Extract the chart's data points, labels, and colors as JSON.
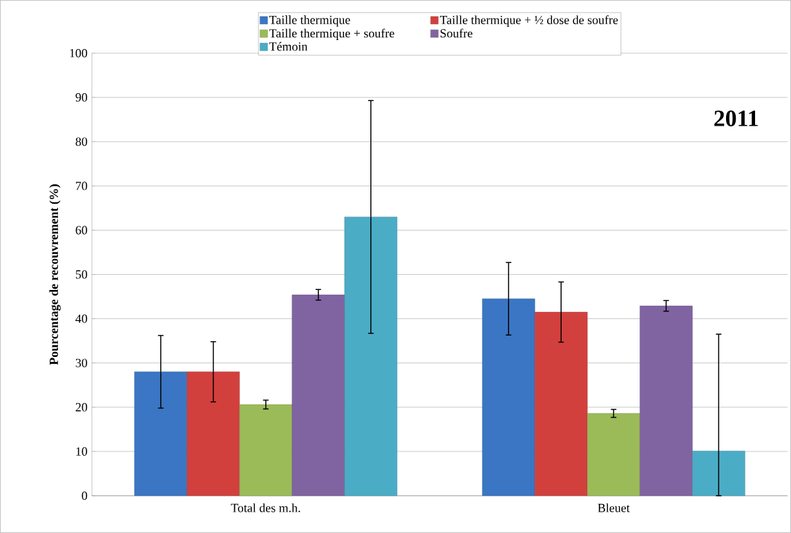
{
  "chart_data": {
    "type": "bar",
    "categories": [
      "Total des m.h.",
      "Bleuet"
    ],
    "ylabel": "Pourcentage de recouvrement (%)",
    "annotations": [
      "2011"
    ],
    "series": [
      {
        "name": "Taille thermique",
        "color": "#3b76c4",
        "values": [
          28,
          44.5
        ],
        "errors": [
          8.2,
          8.2
        ]
      },
      {
        "name": "Taille thermique + ½ dose de soufre",
        "color": "#d2403d",
        "values": [
          28,
          41.5
        ],
        "errors": [
          6.8,
          6.8
        ]
      },
      {
        "name": "Taille thermique + soufre",
        "color": "#9bbb59",
        "values": [
          20.6,
          18.6
        ],
        "errors": [
          1,
          0.9
        ]
      },
      {
        "name": "Soufre",
        "color": "#8064a2",
        "values": [
          45.4,
          42.9
        ],
        "errors": [
          1.2,
          1.2
        ]
      },
      {
        "name": "Témoin",
        "color": "#4bacc6",
        "values": [
          63,
          10.1
        ],
        "errors": [
          26.3,
          [
            0,
            36.5
          ]
        ]
      }
    ],
    "ylim": [
      0,
      100
    ],
    "yticks": [
      0,
      10,
      20,
      30,
      40,
      50,
      60,
      70,
      80,
      90,
      100
    ],
    "grid": "y",
    "legend": "top"
  }
}
